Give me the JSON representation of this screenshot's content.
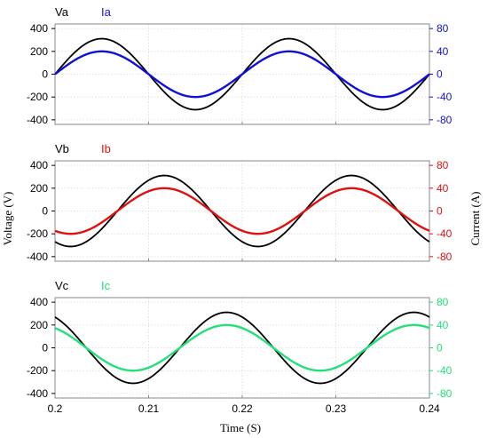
{
  "chart_data": {
    "type": "line",
    "xlabel": "Time (S)",
    "ylabel_left": "Voltage (V)",
    "ylabel_right": "Current (A)",
    "xlim": [
      0.2,
      0.24
    ],
    "x_ticks": [
      "0.2",
      "0.21",
      "0.22",
      "0.23",
      "0.24"
    ],
    "x_tick_values": [
      0.2,
      0.21,
      0.22,
      0.23,
      0.24
    ],
    "frequency_hz": 50,
    "voltage_color": "#000000",
    "panels": [
      {
        "voltage_name": "Va",
        "current_name": "Ia",
        "current_color": "#1010d8",
        "voltage_amplitude": 311,
        "current_amplitude": 40,
        "phase_deg": 0,
        "voltage_ylim": [
          -440,
          440
        ],
        "current_ylim": [
          -88,
          88
        ],
        "voltage_ticks": [
          "400",
          "200",
          "0",
          "-200",
          "-400"
        ],
        "voltage_tick_values": [
          400,
          200,
          0,
          -200,
          -400
        ],
        "current_ticks": [
          "80",
          "40",
          "0",
          "-40",
          "-80"
        ],
        "current_tick_values": [
          80,
          40,
          0,
          -40,
          -80
        ]
      },
      {
        "voltage_name": "Vb",
        "current_name": "Ib",
        "current_color": "#e01010",
        "voltage_amplitude": 311,
        "current_amplitude": 40,
        "phase_deg": -120,
        "voltage_ylim": [
          -440,
          440
        ],
        "current_ylim": [
          -88,
          88
        ],
        "voltage_ticks": [
          "400",
          "200",
          "0",
          "-200",
          "-400"
        ],
        "voltage_tick_values": [
          400,
          200,
          0,
          -200,
          -400
        ],
        "current_ticks": [
          "80",
          "40",
          "0",
          "-40",
          "-80"
        ],
        "current_tick_values": [
          80,
          40,
          0,
          -40,
          -80
        ]
      },
      {
        "voltage_name": "Vc",
        "current_name": "Ic",
        "current_color": "#22e07a",
        "voltage_amplitude": 311,
        "current_amplitude": 40,
        "phase_deg": 120,
        "voltage_ylim": [
          -440,
          440
        ],
        "current_ylim": [
          -88,
          88
        ],
        "voltage_ticks": [
          "400",
          "200",
          "0",
          "-200",
          "-400"
        ],
        "voltage_tick_values": [
          400,
          200,
          0,
          -200,
          -400
        ],
        "current_ticks": [
          "80",
          "40",
          "0",
          "-40",
          "-80"
        ],
        "current_tick_values": [
          80,
          40,
          0,
          -40,
          -80
        ]
      }
    ]
  }
}
